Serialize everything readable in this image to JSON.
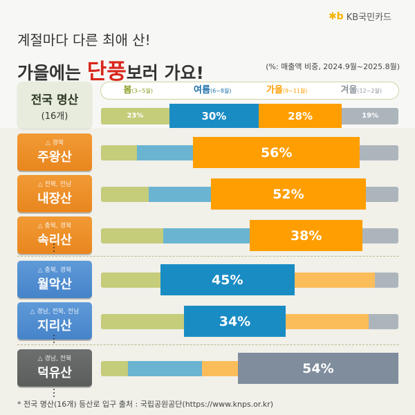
{
  "brand": "KB국민카드",
  "title_line1": "계절마다 다른 최애 산!",
  "title_line2_pre": "가을에는 ",
  "title_line2_highlight": "단풍",
  "title_line2_post": "보러 가요!",
  "unit_note": "(%: 매출액 비중, 2024.9월~2025.8월)",
  "footnote": "* 전국 명산(16개) 등산로 입구 출처 : 국립공원공단(https://www.knps.or.kr)",
  "colors": {
    "spring": "#c5cc7a",
    "summer": "#6ab4d2",
    "summer_strong": "#1a8cc4",
    "fall": "#fbbd5a",
    "fall_strong": "#ff9e00",
    "winter": "#adb5bc",
    "winter_strong": "#7f8d9c"
  },
  "chart_data": {
    "type": "bar",
    "stacked": true,
    "orientation": "horizontal",
    "series_names": [
      "봄",
      "여름",
      "가을",
      "겨울"
    ],
    "legend": [
      {
        "name": "봄",
        "range": "(3~5월)",
        "color": "#8a9a1e"
      },
      {
        "name": "여름",
        "range": "(6~8월)",
        "color": "#1a6ea8"
      },
      {
        "name": "가을",
        "range": "(9~11월)",
        "color": "#ff9e00"
      },
      {
        "name": "겨울",
        "range": "(12~2월)",
        "color": "#8d959c"
      }
    ],
    "national": {
      "name": "전국 명산",
      "count": "(16개)",
      "values": [
        23,
        30,
        28,
        19
      ],
      "labels": [
        "23%",
        "30%",
        "28%",
        "19%"
      ],
      "strong": [
        1,
        2
      ]
    },
    "mountains": [
      {
        "region": "경북",
        "name": "주왕산",
        "values": [
          12,
          19,
          56,
          13
        ],
        "highlight": 2,
        "label": "56%",
        "group": "fall"
      },
      {
        "region": "전북, 전남",
        "name": "내장산",
        "values": [
          16,
          21,
          52,
          11
        ],
        "highlight": 2,
        "label": "52%",
        "group": "fall"
      },
      {
        "region": "충북, 경북",
        "name": "속리산",
        "values": [
          21,
          29,
          38,
          12
        ],
        "highlight": 2,
        "label": "38%",
        "group": "fall"
      },
      {
        "region": "충북, 경북",
        "name": "월악산",
        "values": [
          20,
          45,
          27,
          8
        ],
        "highlight": 1,
        "label": "45%",
        "group": "summer"
      },
      {
        "region": "경남, 전북, 전남",
        "name": "지리산",
        "values": [
          28,
          34,
          28,
          10
        ],
        "highlight": 1,
        "label": "34%",
        "group": "summer"
      },
      {
        "region": "경남, 전북",
        "name": "덕유산",
        "values": [
          9,
          25,
          12,
          54
        ],
        "highlight": 3,
        "label": "54%",
        "group": "winter"
      }
    ]
  }
}
